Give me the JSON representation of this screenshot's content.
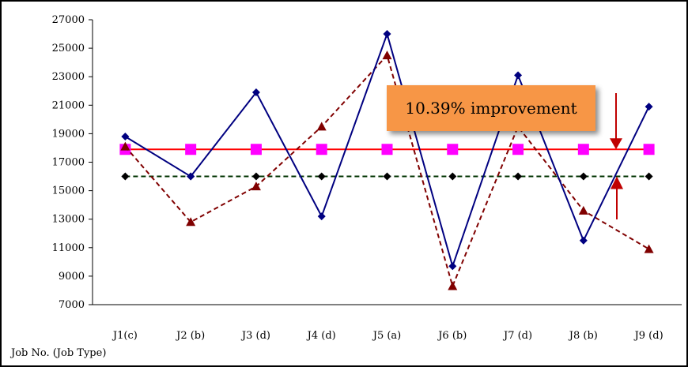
{
  "chart_data": {
    "type": "line",
    "categories": [
      "J1(c)",
      "J2 (b)",
      "J3 (d)",
      "J4 (d)",
      "J5 (a)",
      "J6 (b)",
      "J7 (d)",
      "J8 (b)",
      "J9 (d)"
    ],
    "xlabel": "Job No. (Job Type)",
    "ylabel": "",
    "ylim": [
      7000,
      27000
    ],
    "yticks": [
      7000,
      9000,
      11000,
      13000,
      15000,
      17000,
      19000,
      21000,
      23000,
      25000,
      27000
    ],
    "grid": false,
    "series": [
      {
        "values": [
          18800,
          16000,
          21900,
          13200,
          26000,
          9700,
          23100,
          11500,
          20900
        ],
        "color": "#000080",
        "style": "solid",
        "marker": "diamond"
      },
      {
        "values": [
          18100,
          12800,
          15300,
          19500,
          24500,
          8300,
          19500,
          13600,
          10900
        ],
        "color": "#800000",
        "style": "dashed",
        "marker": "triangle"
      },
      {
        "values": [
          17900,
          17900,
          17900,
          17900,
          17900,
          17900,
          17900,
          17900,
          17900
        ],
        "color": "#ff0000",
        "style": "solid",
        "marker": "square",
        "marker_color": "#ff00ff"
      },
      {
        "values": [
          16000,
          16000,
          16000,
          16000,
          16000,
          16000,
          16000,
          16000,
          16000
        ],
        "color": "#003300",
        "style": "dashed",
        "marker": "diamond",
        "marker_color": "#000000"
      }
    ],
    "annotations": [
      {
        "text": "10.39% improvement",
        "color": "#f79646"
      }
    ],
    "arrow_color": "#c00000"
  }
}
